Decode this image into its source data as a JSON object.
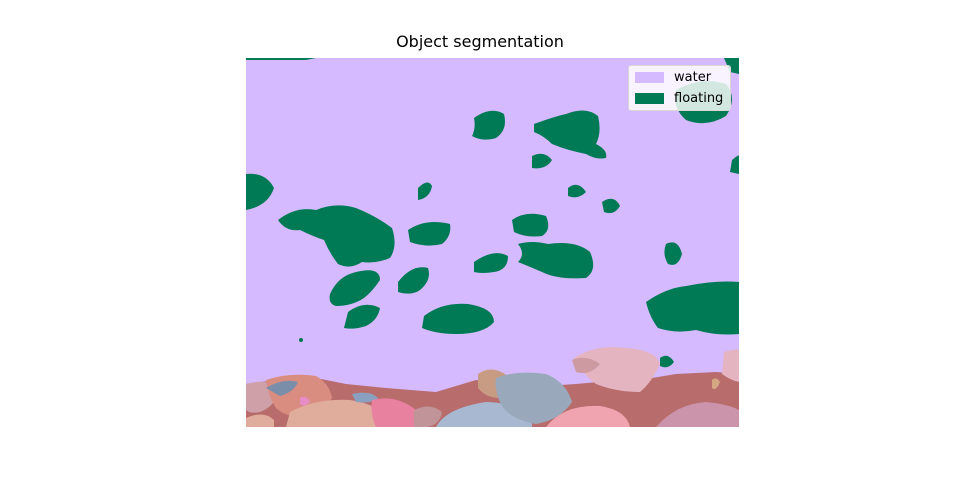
{
  "title": "Object segmentation",
  "legend": [
    {
      "label": "water",
      "color": "#d6baff"
    },
    {
      "label": "floating",
      "color": "#007a55"
    }
  ],
  "colors": {
    "water": "#d6baff",
    "floating": "#007a55",
    "seabed": "#b86c6c",
    "object_a": "#e4b4c0",
    "object_b": "#9aa8bc",
    "object_c": "#e0ac9c",
    "object_d": "#f0a4b0"
  }
}
